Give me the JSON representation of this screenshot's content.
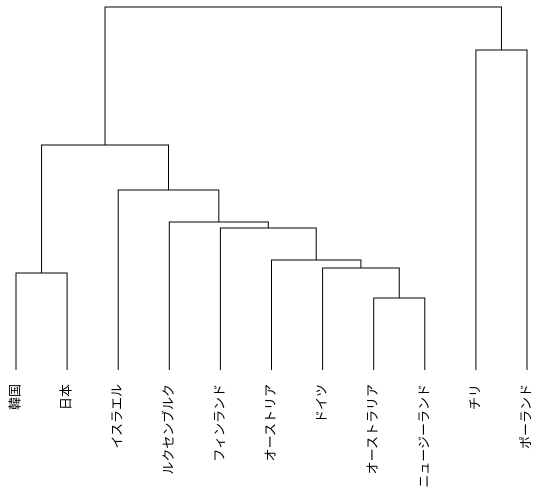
{
  "chart_data": {
    "type": "dendrogram",
    "leaves": [
      "韓国",
      "日本",
      "イスラエル",
      "ルクセンブルク",
      "フィンランド",
      "オーストリア",
      "ドイツ",
      "オーストラリア",
      "ニュージーランド",
      "チリ",
      "ポーランド"
    ],
    "merges": [
      {
        "children": [
          0,
          1
        ],
        "height": 97
      },
      {
        "children": [
          7,
          8
        ],
        "height": 72
      },
      {
        "children": [
          6,
          12
        ],
        "height": 102
      },
      {
        "children": [
          5,
          13
        ],
        "height": 110
      },
      {
        "children": [
          4,
          14
        ],
        "height": 142
      },
      {
        "children": [
          3,
          15
        ],
        "height": 148
      },
      {
        "children": [
          2,
          16
        ],
        "height": 180
      },
      {
        "children": [
          11,
          17
        ],
        "height": 225
      },
      {
        "children": [
          9,
          10
        ],
        "height": 320
      },
      {
        "children": [
          18,
          19
        ],
        "height": 363
      }
    ],
    "color": "#000000"
  }
}
